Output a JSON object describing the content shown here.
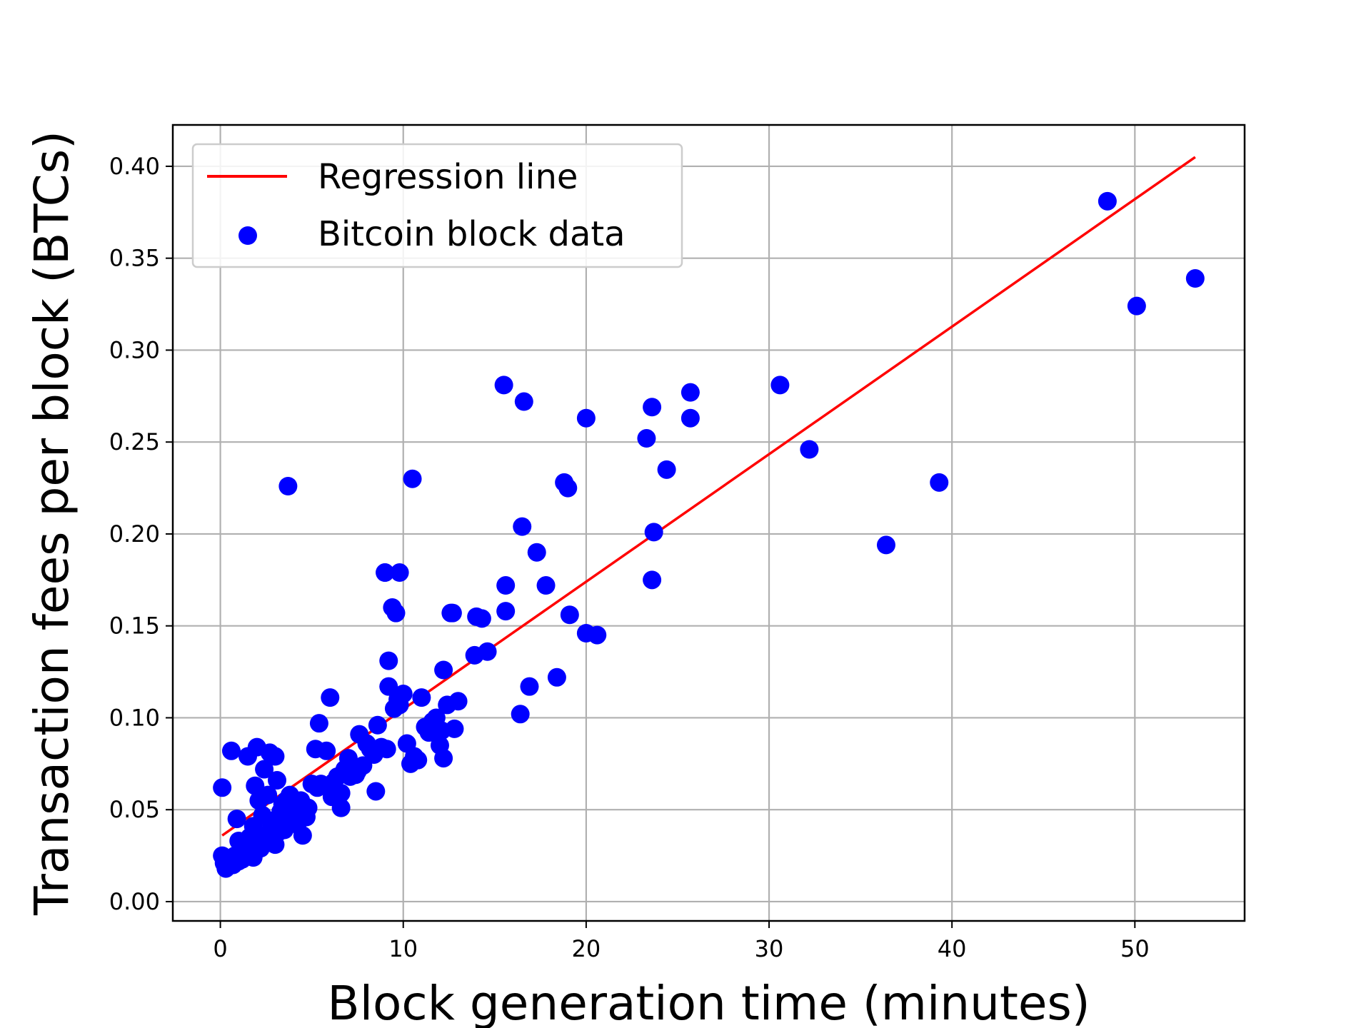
{
  "chart_data": {
    "type": "scatter",
    "xlabel": "Block generation time (minutes)",
    "ylabel": "Transaction fees per block (BTCs)",
    "xlim": [
      -2.6,
      56
    ],
    "ylim": [
      -0.0105,
      0.4225
    ],
    "x_ticks": [
      0,
      10,
      20,
      30,
      40,
      50
    ],
    "x_tick_labels": [
      "0",
      "10",
      "20",
      "30",
      "40",
      "50"
    ],
    "y_ticks": [
      0.0,
      0.05,
      0.1,
      0.15,
      0.2,
      0.25,
      0.3,
      0.35,
      0.4
    ],
    "y_tick_labels": [
      "0.00",
      "0.05",
      "0.10",
      "0.15",
      "0.20",
      "0.25",
      "0.30",
      "0.35",
      "0.40"
    ],
    "grid": true,
    "legend_position": "top-left",
    "legend": [
      {
        "label": "Regression line",
        "kind": "line",
        "color": "#ff0000"
      },
      {
        "label": "Bitcoin block data",
        "kind": "marker",
        "color": "#0000ff"
      }
    ],
    "series": [
      {
        "name": "Regression line",
        "kind": "line",
        "color": "#ff0000",
        "x": [
          0.1,
          53.3
        ],
        "y": [
          0.036,
          0.405
        ]
      },
      {
        "name": "Bitcoin block data",
        "kind": "scatter",
        "color": "#0000ff",
        "x": [
          0.1,
          0.2,
          0.3,
          0.6,
          0.7,
          0.9,
          1.0,
          1.2,
          1.5,
          1.6,
          1.8,
          1.9,
          2.0,
          2.1,
          2.2,
          2.3,
          2.4,
          2.5,
          2.6,
          2.7,
          2.8,
          2.9,
          3.0,
          3.1,
          3.2,
          3.3,
          3.4,
          3.5,
          3.6,
          3.7,
          3.8,
          4.0,
          4.2,
          4.4,
          4.5,
          4.7,
          4.8,
          5.0,
          5.2,
          5.4,
          5.5,
          5.8,
          6.0,
          6.2,
          6.4,
          6.6,
          6.8,
          7.0,
          7.2,
          7.4,
          7.6,
          7.8,
          8.0,
          8.2,
          8.4,
          8.6,
          8.8,
          9.0,
          9.2,
          9.4,
          9.6,
          9.8,
          10.0,
          10.2,
          10.4,
          10.6,
          10.8,
          11.0,
          11.2,
          11.4,
          11.6,
          11.8,
          12.0,
          12.2,
          12.4,
          12.6,
          12.8,
          13.0,
          3.7,
          10.5,
          9.0,
          9.8,
          9.5,
          9.6,
          9.2,
          9.1,
          9.7,
          12.7,
          12.2,
          14.0,
          14.3,
          13.9,
          14.6,
          15.6,
          15.6,
          16.5,
          16.9,
          17.3,
          17.8,
          18.4,
          19.1,
          20.0,
          20.6,
          18.8,
          19.0,
          16.4,
          15.5,
          16.6,
          20.0,
          23.3,
          23.6,
          23.7,
          23.6,
          24.4,
          25.7,
          25.7,
          30.6,
          32.2,
          36.4,
          39.3,
          48.5,
          50.1,
          53.3,
          0.1,
          0.3,
          0.8,
          1.2,
          1.8,
          2.4,
          3.0,
          3.5,
          4.1,
          4.7,
          5.3,
          6.1,
          6.6,
          7.1,
          7.5,
          1.0,
          1.4,
          2.8,
          4.3,
          6.4,
          8.5,
          11.5,
          12.1
        ],
        "y": [
          0.062,
          0.021,
          0.018,
          0.082,
          0.02,
          0.045,
          0.022,
          0.028,
          0.079,
          0.035,
          0.041,
          0.063,
          0.084,
          0.055,
          0.029,
          0.047,
          0.072,
          0.035,
          0.058,
          0.081,
          0.032,
          0.044,
          0.079,
          0.066,
          0.038,
          0.049,
          0.053,
          0.043,
          0.055,
          0.047,
          0.058,
          0.05,
          0.042,
          0.055,
          0.036,
          0.046,
          0.051,
          0.064,
          0.083,
          0.097,
          0.064,
          0.082,
          0.111,
          0.065,
          0.068,
          0.059,
          0.072,
          0.078,
          0.073,
          0.069,
          0.091,
          0.074,
          0.086,
          0.083,
          0.08,
          0.096,
          0.084,
          0.179,
          0.117,
          0.16,
          0.157,
          0.179,
          0.113,
          0.086,
          0.075,
          0.079,
          0.077,
          0.111,
          0.095,
          0.092,
          0.098,
          0.1,
          0.085,
          0.078,
          0.107,
          0.157,
          0.094,
          0.109,
          0.226,
          0.23,
          0.179,
          0.107,
          0.105,
          0.106,
          0.131,
          0.083,
          0.11,
          0.157,
          0.126,
          0.155,
          0.154,
          0.134,
          0.136,
          0.158,
          0.172,
          0.204,
          0.117,
          0.19,
          0.172,
          0.122,
          0.156,
          0.146,
          0.145,
          0.228,
          0.225,
          0.102,
          0.281,
          0.272,
          0.263,
          0.252,
          0.269,
          0.201,
          0.175,
          0.235,
          0.277,
          0.263,
          0.281,
          0.246,
          0.194,
          0.228,
          0.381,
          0.324,
          0.339,
          0.025,
          0.02,
          0.025,
          0.023,
          0.024,
          0.036,
          0.031,
          0.039,
          0.044,
          0.051,
          0.062,
          0.057,
          0.051,
          0.068,
          0.071,
          0.033,
          0.028,
          0.042,
          0.048,
          0.059,
          0.06,
          0.093,
          0.093
        ]
      }
    ]
  }
}
